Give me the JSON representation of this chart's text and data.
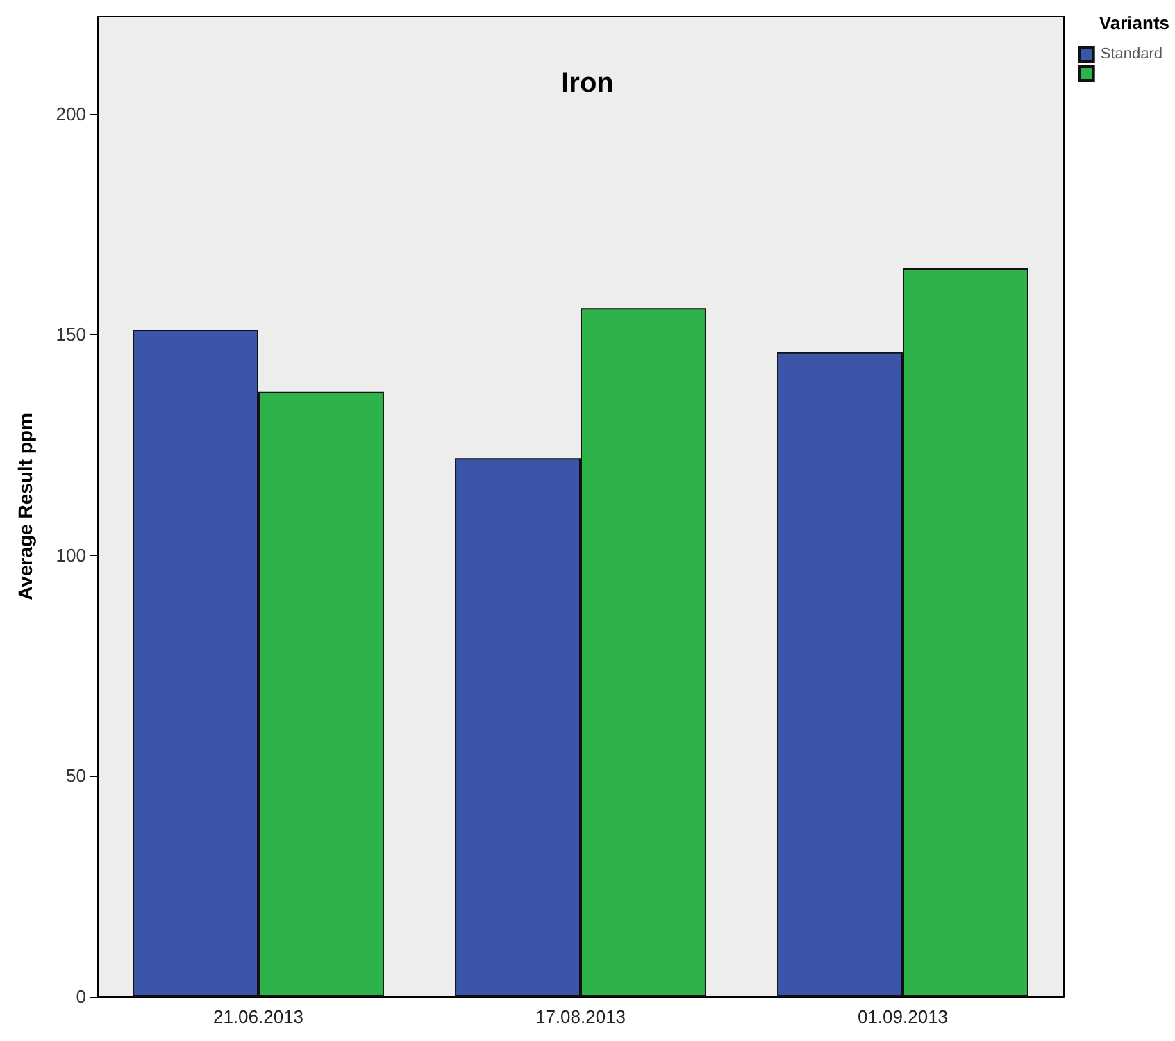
{
  "chart_data": {
    "type": "bar",
    "title": "Iron",
    "ylabel": "Average Result ppm",
    "legend_title": "Variants",
    "categories": [
      "21.06.2013",
      "17.08.2013",
      "01.09.2013"
    ],
    "series": [
      {
        "name": "Standard",
        "color": "#3b55a8",
        "values": [
          151,
          122,
          146
        ]
      },
      {
        "color": "#2db34a",
        "values": [
          137,
          156,
          165
        ]
      }
    ],
    "ylim": [
      0,
      222
    ],
    "yticks": [
      0,
      50,
      100,
      150,
      200
    ],
    "grid": false,
    "legend": "top right"
  }
}
